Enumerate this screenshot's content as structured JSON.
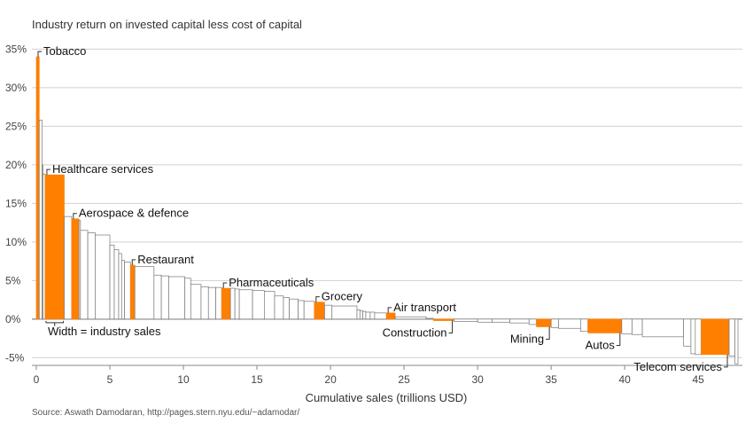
{
  "chart_data": {
    "type": "bar",
    "variant": "variable-width (Marimekko) bars",
    "title": "Industry return on invested capital less cost of capital",
    "xlabel": "Cumulative sales (trillions USD)",
    "ylabel": "",
    "source": "Source: Aswath Damodaran, http://pages.stern.nyu.edu/~adamodar/",
    "xlim": [
      -0.3,
      48
    ],
    "ylim": [
      -6,
      37
    ],
    "x_ticks": [
      0,
      5,
      10,
      15,
      20,
      25,
      30,
      35,
      40,
      45
    ],
    "y_ticks": [
      -5,
      0,
      5,
      10,
      15,
      20,
      25,
      30,
      35
    ],
    "y_tick_labels": [
      "-5%",
      "0%",
      "5%",
      "10%",
      "15%",
      "20%",
      "25%",
      "30%",
      "35%"
    ],
    "grid": "horizontal",
    "highlight_color": "#ff7f00",
    "width_note": "Width = industry sales",
    "bars": [
      {
        "start": 0.0,
        "end": 0.2,
        "value": 34.0,
        "label": "Tobacco",
        "highlight": true
      },
      {
        "start": 0.2,
        "end": 0.4,
        "value": 25.8,
        "label": "",
        "highlight": false
      },
      {
        "start": 0.4,
        "end": 0.45,
        "value": 20.0,
        "label": "",
        "highlight": false
      },
      {
        "start": 0.45,
        "end": 0.6,
        "value": 18.8,
        "label": "",
        "highlight": false
      },
      {
        "start": 0.6,
        "end": 1.9,
        "value": 18.7,
        "label": "Healthcare services",
        "highlight": true
      },
      {
        "start": 1.9,
        "end": 2.4,
        "value": 13.3,
        "label": "",
        "highlight": false
      },
      {
        "start": 2.4,
        "end": 2.9,
        "value": 13.0,
        "label": "Aerospace & defence",
        "highlight": true
      },
      {
        "start": 2.9,
        "end": 3.0,
        "value": 12.8,
        "label": "",
        "highlight": false
      },
      {
        "start": 3.0,
        "end": 3.5,
        "value": 11.5,
        "label": "",
        "highlight": false
      },
      {
        "start": 3.5,
        "end": 4.0,
        "value": 11.2,
        "label": "",
        "highlight": false
      },
      {
        "start": 4.0,
        "end": 5.0,
        "value": 10.9,
        "label": "",
        "highlight": false
      },
      {
        "start": 5.0,
        "end": 5.3,
        "value": 9.6,
        "label": "",
        "highlight": false
      },
      {
        "start": 5.3,
        "end": 5.6,
        "value": 9.0,
        "label": "",
        "highlight": false
      },
      {
        "start": 5.6,
        "end": 5.8,
        "value": 8.5,
        "label": "",
        "highlight": false
      },
      {
        "start": 5.8,
        "end": 6.0,
        "value": 7.6,
        "label": "",
        "highlight": false
      },
      {
        "start": 6.0,
        "end": 6.4,
        "value": 7.4,
        "label": "",
        "highlight": false
      },
      {
        "start": 6.4,
        "end": 6.7,
        "value": 7.0,
        "label": "Restaurant",
        "highlight": true
      },
      {
        "start": 6.7,
        "end": 8.0,
        "value": 6.8,
        "label": "",
        "highlight": false
      },
      {
        "start": 8.0,
        "end": 8.5,
        "value": 5.7,
        "label": "",
        "highlight": false
      },
      {
        "start": 8.5,
        "end": 9.0,
        "value": 5.6,
        "label": "",
        "highlight": false
      },
      {
        "start": 9.0,
        "end": 10.1,
        "value": 5.5,
        "label": "",
        "highlight": false
      },
      {
        "start": 10.1,
        "end": 10.5,
        "value": 5.3,
        "label": "",
        "highlight": false
      },
      {
        "start": 10.5,
        "end": 11.2,
        "value": 4.5,
        "label": "",
        "highlight": false
      },
      {
        "start": 11.2,
        "end": 11.7,
        "value": 4.2,
        "label": "",
        "highlight": false
      },
      {
        "start": 11.7,
        "end": 12.2,
        "value": 4.1,
        "label": "",
        "highlight": false
      },
      {
        "start": 12.2,
        "end": 12.6,
        "value": 4.1,
        "label": "",
        "highlight": false
      },
      {
        "start": 12.6,
        "end": 13.2,
        "value": 4.0,
        "label": "Pharmaceuticals",
        "highlight": true
      },
      {
        "start": 13.2,
        "end": 13.5,
        "value": 4.0,
        "label": "",
        "highlight": false
      },
      {
        "start": 13.5,
        "end": 13.8,
        "value": 3.9,
        "label": "",
        "highlight": false
      },
      {
        "start": 13.8,
        "end": 14.7,
        "value": 3.8,
        "label": "",
        "highlight": false
      },
      {
        "start": 14.7,
        "end": 15.5,
        "value": 3.7,
        "label": "",
        "highlight": false
      },
      {
        "start": 15.5,
        "end": 16.2,
        "value": 3.6,
        "label": "",
        "highlight": false
      },
      {
        "start": 16.2,
        "end": 16.8,
        "value": 3.0,
        "label": "",
        "highlight": false
      },
      {
        "start": 16.8,
        "end": 17.2,
        "value": 2.8,
        "label": "",
        "highlight": false
      },
      {
        "start": 17.2,
        "end": 17.8,
        "value": 2.6,
        "label": "",
        "highlight": false
      },
      {
        "start": 17.8,
        "end": 18.2,
        "value": 2.4,
        "label": "",
        "highlight": false
      },
      {
        "start": 18.2,
        "end": 18.9,
        "value": 2.3,
        "label": "",
        "highlight": false
      },
      {
        "start": 18.9,
        "end": 19.6,
        "value": 2.2,
        "label": "Grocery",
        "highlight": true
      },
      {
        "start": 19.6,
        "end": 20.1,
        "value": 1.8,
        "label": "",
        "highlight": false
      },
      {
        "start": 20.1,
        "end": 21.8,
        "value": 1.7,
        "label": "",
        "highlight": false
      },
      {
        "start": 21.8,
        "end": 22.0,
        "value": 1.2,
        "label": "",
        "highlight": false
      },
      {
        "start": 22.0,
        "end": 22.2,
        "value": 1.1,
        "label": "",
        "highlight": false
      },
      {
        "start": 22.2,
        "end": 22.4,
        "value": 1.0,
        "label": "",
        "highlight": false
      },
      {
        "start": 22.4,
        "end": 22.7,
        "value": 0.9,
        "label": "",
        "highlight": false
      },
      {
        "start": 22.7,
        "end": 23.0,
        "value": 0.9,
        "label": "",
        "highlight": false
      },
      {
        "start": 23.0,
        "end": 23.8,
        "value": 0.8,
        "label": "",
        "highlight": false
      },
      {
        "start": 23.8,
        "end": 24.4,
        "value": 0.8,
        "label": "Air transport",
        "highlight": true
      },
      {
        "start": 24.4,
        "end": 26.5,
        "value": 0.3,
        "label": "",
        "highlight": false
      },
      {
        "start": 26.5,
        "end": 27.0,
        "value": 0.1,
        "label": "",
        "highlight": false
      },
      {
        "start": 27.0,
        "end": 28.4,
        "value": -0.2,
        "label": "Construction",
        "highlight": true
      },
      {
        "start": 28.4,
        "end": 30.0,
        "value": -0.3,
        "label": "",
        "highlight": false
      },
      {
        "start": 30.0,
        "end": 31.0,
        "value": -0.4,
        "label": "",
        "highlight": false
      },
      {
        "start": 31.0,
        "end": 32.2,
        "value": -0.4,
        "label": "",
        "highlight": false
      },
      {
        "start": 32.2,
        "end": 33.5,
        "value": -0.5,
        "label": "",
        "highlight": false
      },
      {
        "start": 33.5,
        "end": 34.0,
        "value": -0.7,
        "label": "",
        "highlight": false
      },
      {
        "start": 34.0,
        "end": 35.0,
        "value": -1.0,
        "label": "Mining",
        "highlight": true
      },
      {
        "start": 35.0,
        "end": 35.5,
        "value": -1.1,
        "label": "",
        "highlight": false
      },
      {
        "start": 35.5,
        "end": 37.0,
        "value": -1.2,
        "label": "",
        "highlight": false
      },
      {
        "start": 37.0,
        "end": 37.5,
        "value": -1.6,
        "label": "",
        "highlight": false
      },
      {
        "start": 37.5,
        "end": 39.8,
        "value": -1.8,
        "label": "Autos",
        "highlight": true
      },
      {
        "start": 39.8,
        "end": 40.5,
        "value": -1.9,
        "label": "",
        "highlight": false
      },
      {
        "start": 40.5,
        "end": 41.2,
        "value": -2.0,
        "label": "",
        "highlight": false
      },
      {
        "start": 41.2,
        "end": 44.0,
        "value": -2.3,
        "label": "",
        "highlight": false
      },
      {
        "start": 44.0,
        "end": 44.5,
        "value": -3.5,
        "label": "",
        "highlight": false
      },
      {
        "start": 44.5,
        "end": 44.8,
        "value": -4.5,
        "label": "",
        "highlight": false
      },
      {
        "start": 44.8,
        "end": 45.2,
        "value": -4.6,
        "label": "",
        "highlight": false
      },
      {
        "start": 45.2,
        "end": 47.1,
        "value": -4.6,
        "label": "Telecom services",
        "highlight": true
      },
      {
        "start": 47.1,
        "end": 47.5,
        "value": -4.8,
        "label": "",
        "highlight": false
      },
      {
        "start": 47.5,
        "end": 47.7,
        "value": -5.8,
        "label": "",
        "highlight": false
      }
    ]
  }
}
